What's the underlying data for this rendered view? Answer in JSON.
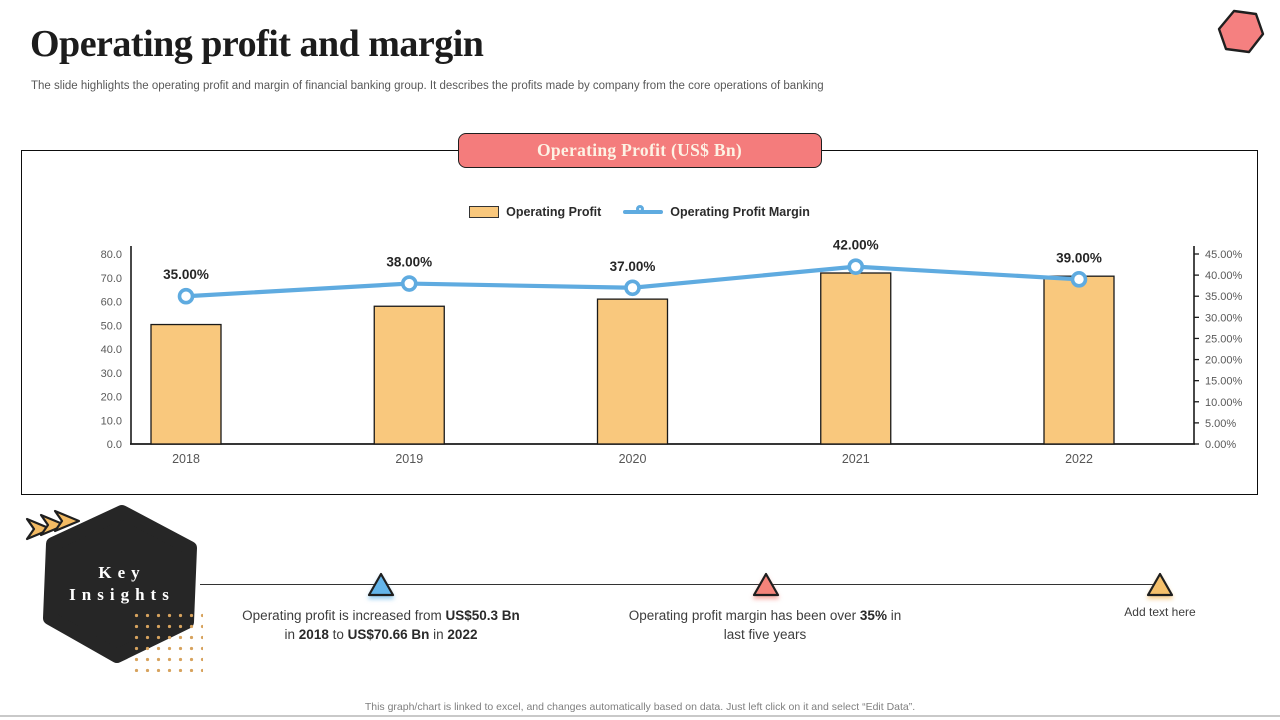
{
  "slide": {
    "title": "Operating profit and margin",
    "subtitle": "The slide highlights the operating profit and margin of financial banking group. It describes the profits made by company from the core operations of banking",
    "footer": "This graph/chart is linked to excel, and changes automatically based on data. Just left click on it and select “Edit Data”."
  },
  "colors": {
    "salmon": "#f47c7c",
    "bar_fill": "#f9c87d",
    "bar_border": "#1a1a1a",
    "line_blue": "#5fabe0",
    "dark": "#262626",
    "axis_gray": "#595959",
    "marker_blue": "#64b5ea",
    "marker_salmon": "#f4837a",
    "marker_orange": "#f5c06b"
  },
  "chart": {
    "badge_title": "Operating Profit (US$ Bn)",
    "legend": [
      {
        "label": "Operating Profit",
        "swatch": "bar-swatch"
      },
      {
        "label": "Operating Profit Margin",
        "swatch": "line-swatch"
      }
    ]
  },
  "chart_data": {
    "type": "combo bar+line",
    "title": "Operating Profit (US$ Bn)",
    "categories": [
      "2018",
      "2019",
      "2020",
      "2021",
      "2022"
    ],
    "series": [
      {
        "name": "Operating Profit",
        "type": "bar",
        "axis": "left",
        "values": [
          50.3,
          58,
          61,
          72,
          70.66
        ]
      },
      {
        "name": "Operating Profit Margin",
        "type": "line",
        "axis": "right",
        "values": [
          35,
          38,
          37,
          42,
          39
        ],
        "point_labels": [
          "35.00%",
          "38.00%",
          "37.00%",
          "42.00%",
          "39.00%"
        ]
      }
    ],
    "left_axis": {
      "min": 0,
      "max": 80,
      "step": 10,
      "format": "one_decimal"
    },
    "right_axis": {
      "min": 0,
      "max": 45,
      "step": 5,
      "format": "percent_two_decimals"
    },
    "grid": false,
    "legend_position": "top-center"
  },
  "key_insights": {
    "line1": "Key",
    "line2": "Insights"
  },
  "insights": {
    "items": [
      {
        "segments": [
          {
            "text": "Operating profit is increased from "
          },
          {
            "text": "US$50.3 Bn"
          },
          {
            "text": " in "
          },
          {
            "text": "2018"
          },
          {
            "text": " to "
          },
          {
            "text": "US$70.66 Bn"
          },
          {
            "text": " in "
          },
          {
            "text": "2022"
          }
        ]
      },
      {
        "segments": [
          {
            "text": "Operating profit margin has been over "
          },
          {
            "text": "35%"
          },
          {
            "text": " in last five years"
          }
        ]
      }
    ],
    "add_text_placeholder": "Add text here"
  }
}
